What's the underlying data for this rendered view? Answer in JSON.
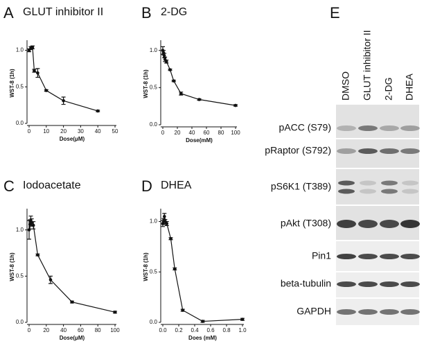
{
  "chart_data": [
    {
      "type": "line",
      "panel": "A",
      "title": "GLUT inhibitor II",
      "x_label": "Dose(μM)",
      "y_label": "WST-8 (1h)",
      "x": [
        0,
        1,
        2,
        3,
        5,
        10,
        20,
        40
      ],
      "series": [
        {
          "color": "#111111",
          "values": [
            1.0,
            1.03,
            1.04,
            0.72,
            0.69,
            0.45,
            0.31,
            0.17
          ],
          "errors": [
            0.02,
            0.02,
            0.02,
            0.02,
            0.06,
            0.01,
            0.05,
            0.01
          ]
        }
      ],
      "xlim": [
        0,
        50
      ],
      "xticks": [
        0,
        10,
        20,
        30,
        40,
        50
      ],
      "ylim": [
        0,
        1.1
      ],
      "yticks": [
        {
          "value": 0,
          "label": "0.0"
        },
        0.5,
        {
          "value": 1,
          "label": "1.0"
        }
      ]
    },
    {
      "type": "line",
      "panel": "B",
      "title": "2-DG",
      "x_label": "Dose(mM)",
      "y_label": "WST-8 (1h)",
      "x": [
        0,
        1,
        2,
        3,
        5,
        10,
        15,
        25,
        50,
        100
      ],
      "series": [
        {
          "color": "#111111",
          "values": [
            1.0,
            0.97,
            0.93,
            0.88,
            0.85,
            0.74,
            0.59,
            0.42,
            0.34,
            0.26
          ],
          "errors": [
            0.05,
            0.03,
            0.03,
            0.03,
            0.02,
            0.01,
            0.01,
            0.02,
            0.01,
            0.01
          ]
        }
      ],
      "xlim": [
        0,
        100
      ],
      "xticks": [
        0,
        20,
        40,
        60,
        80,
        100
      ],
      "ylim": [
        0,
        1.1
      ],
      "yticks": [
        {
          "value": 0,
          "label": "0.0"
        },
        0.5,
        {
          "value": 1,
          "label": "1.0"
        }
      ]
    },
    {
      "type": "line",
      "panel": "C",
      "title": "Iodoacetate",
      "x_label": "Dose(μM)",
      "y_label": "WST-8 (1h)",
      "x": [
        0,
        1,
        2,
        3,
        5,
        10,
        25,
        50,
        100
      ],
      "series": [
        {
          "color": "#111111",
          "values": [
            1.0,
            1.06,
            1.1,
            1.08,
            1.05,
            0.73,
            0.46,
            0.22,
            0.11
          ],
          "errors": [
            0.1,
            0.05,
            0.05,
            0.04,
            0.04,
            0.01,
            0.04,
            0.01,
            0.01
          ]
        }
      ],
      "xlim": [
        0,
        100
      ],
      "xticks": [
        0,
        20,
        40,
        60,
        80,
        100
      ],
      "ylim": [
        0,
        1.2
      ],
      "yticks": [
        {
          "value": 0,
          "label": "0.0"
        },
        0.5,
        {
          "value": 1,
          "label": "1.0"
        }
      ]
    },
    {
      "type": "line",
      "panel": "D",
      "title": "DHEA",
      "x_label": "Does (mM)",
      "y_label": "WST-8 (1h)",
      "x": [
        0,
        0.01,
        0.02,
        0.03,
        0.05,
        0.1,
        0.15,
        0.25,
        0.5,
        1.0
      ],
      "series": [
        {
          "color": "#111111",
          "values": [
            0.98,
            1.0,
            1.05,
            1.0,
            0.98,
            0.83,
            0.53,
            0.12,
            0.01,
            0.03
          ],
          "errors": [
            0.03,
            0.03,
            0.03,
            0.02,
            0.02,
            0.01,
            0.01,
            0.01,
            0.01,
            0.01
          ]
        }
      ],
      "xlim": [
        0,
        1.0
      ],
      "xticks": [
        {
          "value": 0,
          "label": "0.0"
        },
        0.2,
        0.4,
        0.6,
        0.8,
        {
          "value": 1,
          "label": "1.0"
        }
      ],
      "ylim": [
        0,
        1.1
      ],
      "yticks": [
        {
          "value": 0,
          "label": "0.0"
        },
        0.5,
        {
          "value": 1,
          "label": "1.0"
        }
      ]
    }
  ],
  "blot": {
    "panel": "E",
    "lanes": [
      "DMSO",
      "GLUT inhibitor II",
      "2-DG",
      "DHEA"
    ],
    "rows": [
      "pACC (S79)",
      "pRaptor (S792)",
      "pS6K1 (T389)",
      "pAkt (T308)",
      "Pin1",
      "beta-tubulin",
      "GAPDH"
    ]
  }
}
